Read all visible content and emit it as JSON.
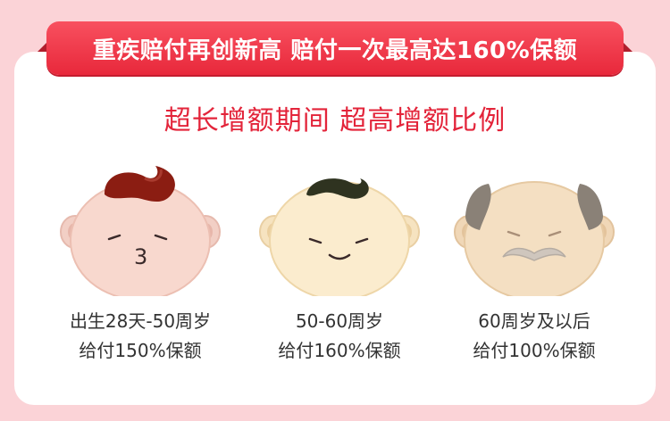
{
  "banner": {
    "title": "重疾赔付再创新高 赔付一次最高达160%保额"
  },
  "subtitle": "超长增额期间 超高增额比例",
  "stages": [
    {
      "age": "出生28天-50周岁",
      "payout": "给付150%保额"
    },
    {
      "age": "50-60周岁",
      "payout": "给付160%保额"
    },
    {
      "age": "60周岁及以后",
      "payout": "给付100%保额"
    }
  ],
  "colors": {
    "background": "#fbd3d7",
    "accent": "#e3243a",
    "ribbon_dark": "#b01e2c"
  }
}
